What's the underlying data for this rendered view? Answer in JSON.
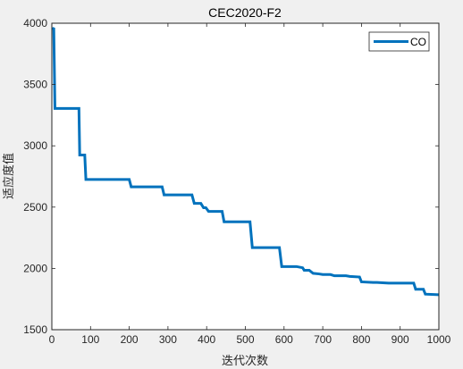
{
  "chart_data": {
    "type": "line",
    "title": "CEC2020-F2",
    "xlabel": "迭代次数",
    "ylabel": "适应度值",
    "xlim": [
      0,
      1000
    ],
    "ylim": [
      1500,
      4000
    ],
    "xticks": [
      0,
      100,
      200,
      300,
      400,
      500,
      600,
      700,
      800,
      900,
      1000
    ],
    "yticks": [
      1500,
      2000,
      2500,
      3000,
      3500,
      4000
    ],
    "grid": false,
    "legend_position": "top-right",
    "series": [
      {
        "name": "CO",
        "color": "#0072bd",
        "x": [
          1,
          5,
          8,
          70,
          72,
          85,
          88,
          200,
          205,
          285,
          290,
          362,
          368,
          385,
          392,
          398,
          405,
          440,
          445,
          512,
          518,
          588,
          594,
          632,
          648,
          652,
          665,
          675,
          690,
          700,
          720,
          730,
          760,
          770,
          795,
          800,
          830,
          840,
          870,
          935,
          940,
          960,
          965,
          1000
        ],
        "y": [
          3960,
          3955,
          3305,
          3305,
          2925,
          2925,
          2725,
          2725,
          2665,
          2665,
          2600,
          2600,
          2530,
          2530,
          2495,
          2495,
          2465,
          2465,
          2380,
          2380,
          2170,
          2170,
          2015,
          2015,
          2005,
          1985,
          1985,
          1960,
          1955,
          1950,
          1950,
          1940,
          1940,
          1935,
          1930,
          1890,
          1885,
          1885,
          1880,
          1880,
          1830,
          1830,
          1790,
          1785
        ]
      }
    ]
  }
}
